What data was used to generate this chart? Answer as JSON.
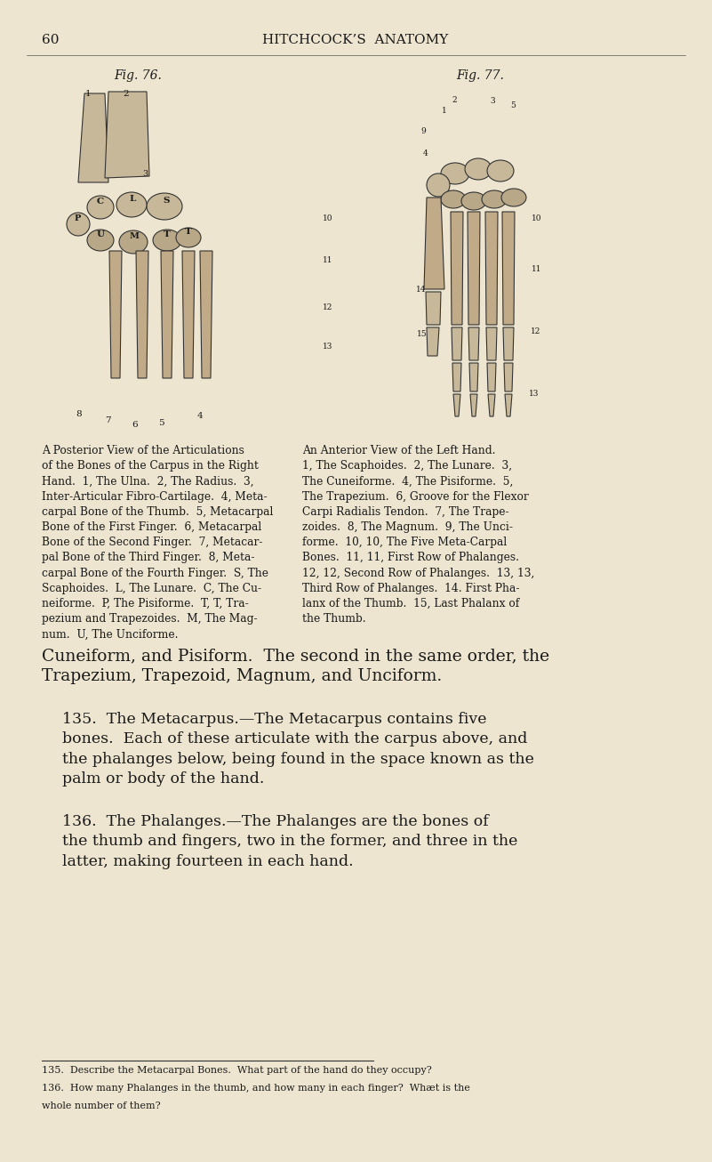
{
  "bg_color": "#e8e0cc",
  "page_color": "#ede5cf",
  "text_color": "#1a1a1a",
  "header_page_num": "60",
  "header_title": "HITCHCOCK’S  ANATOMY",
  "fig76_label": "Fig. 76.",
  "fig77_label": "Fig. 77.",
  "caption_left": "A Posterior View of the Articulations\nof the Bones of the Carpus in the Right\nHand.  1, The Ulna.  2, The Radius.  3,\nInter-Articular Fibro-Cartilage.  4, Meta-\ncarpal Bone of the Thumb.  5, Metacarpal\nBone of the First Finger.  6, Metacarpal\nBone of the Second Finger.  7, Metacar-\npal Bone of the Third Finger.  8, Meta-\ncarpal Bone of the Fourth Finger.  S, The\nScaphoides.  L, The Lunare.  C, The Cu-\nneiforme.  P, The Pisiforme.  T, T, Tra-\npezium and Trapezoides.  M, The Mag-\nnum.  U, The Unciforme.",
  "caption_right": "An Anterior View of the Left Hand.\n1, The Scaphoides.  2, The Lunare.  3,\nThe Cuneiforme.  4, The Pisiforme.  5,\nThe Trapezium.  6, Groove for the Flexor\nCarpi Radialis Tendon.  7, The Trape-\nzoides.  8, The Magnum.  9, The Unci-\nforme.  10, 10, The Five Meta-Carpal\nBones.  11, 11, First Row of Phalanges.\n12, 12, Second Row of Phalanges.  13, 13,\nThird Row of Phalanges.  14. First Pha-\nlanx of the Thumb.  15, Last Phalanx of\nthe Thumb.",
  "text_cuneiform": "Cuneiform, and Pisiform.  The second in the same order, the\nTrapezium, Trapezoid, Magnum, and Unciform.",
  "section135_heading": "135.",
  "section135_title": "The Metacarpus.",
  "section135_dash": "—",
  "section135_body": "The Metacarpus contains five\nbones.  Each of these articulate with the carpus above, and\nthe phalanges below, being found in the space known as the\npalm or body of the hand.",
  "section136_heading": "136.",
  "section136_title": "The Phalanges.",
  "section136_dash": "—",
  "section136_body": "The Phalanges are the bones of\nthe thumb and fingers, two in the former, and three in the\nlatter, making fourteen in each hand.",
  "footer_line": true,
  "footer_text1": "135.  Describe the Metacarpal Bones.  What part of the hand do they occupy?",
  "footer_text2": "136.  How many Phalanges in the thumb, and how many in each finger?  Whæt is the",
  "footer_text3": "whole number of them?"
}
